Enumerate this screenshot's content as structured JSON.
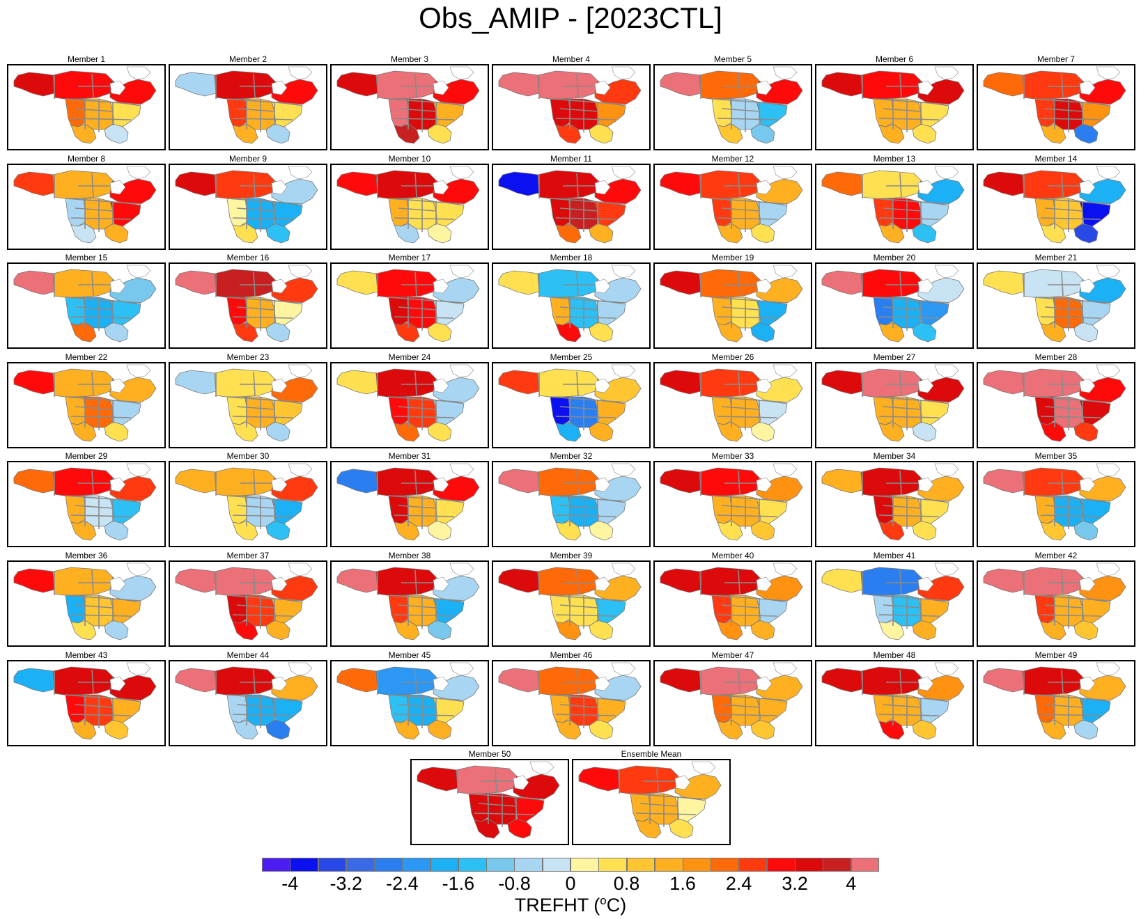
{
  "title": "Obs_AMIP - [2023CTL]",
  "map_region": "North America",
  "variable": "TREFHT",
  "units_open": "TREFHT (",
  "units_sup": "o",
  "units_close": "C)",
  "colorbar": {
    "colors": [
      "#4b1df2",
      "#0b10f0",
      "#2848e8",
      "#3a6ae6",
      "#2a7ef0",
      "#2c98f4",
      "#1cb0f5",
      "#2cc0f5",
      "#78c8ee",
      "#a8d6f2",
      "#c8e4f4",
      "#fff4a0",
      "#ffe050",
      "#ffc632",
      "#ffb020",
      "#ff9210",
      "#ff6a08",
      "#ff3a10",
      "#ff0a0a",
      "#dc0a0a",
      "#c82020",
      "#eb7078"
    ],
    "tick_labels": [
      "-4",
      "-3.2",
      "-2.4",
      "-1.6",
      "-0.8",
      "0",
      "0.8",
      "1.6",
      "2.4",
      "3.2",
      "4"
    ]
  },
  "panels": [
    {
      "label": "Member 1",
      "anom": {
        "NW": 3.5,
        "CAN": 3.0,
        "CE": 2.8,
        "WUS": 2.0,
        "CUS": 1.6,
        "EUS": 0.4,
        "SW": 1.2,
        "SE": -0.4
      }
    },
    {
      "label": "Member 2",
      "anom": {
        "NW": -0.6,
        "CAN": 3.6,
        "CE": 2.8,
        "WUS": 2.4,
        "CUS": 1.6,
        "EUS": 0.8,
        "SW": 1.2,
        "SE": -0.6
      }
    },
    {
      "label": "Member 3",
      "anom": {
        "NW": 3.4,
        "CAN": 4.2,
        "CE": 3.0,
        "WUS": 4.0,
        "CUS": 3.6,
        "EUS": 1.6,
        "SW": 3.8,
        "SE": 0.4
      }
    },
    {
      "label": "Member 4",
      "anom": {
        "NW": 4.2,
        "CAN": 4.2,
        "CE": 2.6,
        "WUS": 3.2,
        "CUS": 3.6,
        "EUS": 1.8,
        "SW": 2.4,
        "SE": 0.6
      }
    },
    {
      "label": "Member 5",
      "anom": {
        "NW": 4.2,
        "CAN": 2.0,
        "CE": 3.0,
        "WUS": 0.8,
        "CUS": -0.8,
        "EUS": -1.2,
        "SW": 1.0,
        "SE": -1.0
      }
    },
    {
      "label": "Member 6",
      "anom": {
        "NW": 3.6,
        "CAN": 3.0,
        "CE": 3.4,
        "WUS": 1.6,
        "CUS": 1.2,
        "EUS": 0.6,
        "SW": 1.6,
        "SE": 0.4
      }
    },
    {
      "label": "Member 7",
      "anom": {
        "NW": 2.2,
        "CAN": 2.6,
        "CE": 2.8,
        "WUS": 2.6,
        "CUS": 3.6,
        "EUS": 1.8,
        "SW": 1.6,
        "SE": -2.8
      }
    },
    {
      "label": "Member 8",
      "anom": {
        "NW": 2.4,
        "CAN": 1.2,
        "CE": 2.8,
        "WUS": -0.8,
        "CUS": 1.6,
        "EUS": 3.0,
        "SW": -0.4,
        "SE": 1.2
      }
    },
    {
      "label": "Member 9",
      "anom": {
        "NW": 3.2,
        "CAN": 2.6,
        "CE": -0.8,
        "WUS": 0.0,
        "CUS": -2.0,
        "EUS": -1.6,
        "SW": 0.4,
        "SE": -1.2
      }
    },
    {
      "label": "Member 10",
      "anom": {
        "NW": 3.0,
        "CAN": 3.2,
        "CE": 3.0,
        "WUS": 1.2,
        "CUS": 0.8,
        "EUS": 0.4,
        "SW": -0.6,
        "SE": 0.0
      }
    },
    {
      "label": "Member 11",
      "anom": {
        "NW": -3.8,
        "CAN": 3.2,
        "CE": 2.8,
        "WUS": 3.4,
        "CUS": 3.8,
        "EUS": 2.4,
        "SW": 2.0,
        "SE": 1.6
      }
    },
    {
      "label": "Member 12",
      "anom": {
        "NW": 3.0,
        "CAN": 2.4,
        "CE": 1.2,
        "WUS": 2.4,
        "CUS": 1.6,
        "EUS": -0.6,
        "SW": 1.4,
        "SE": 0.8
      }
    },
    {
      "label": "Member 13",
      "anom": {
        "NW": 2.2,
        "CAN": 0.4,
        "CE": -1.6,
        "WUS": 2.4,
        "CUS": 2.8,
        "EUS": -0.8,
        "SW": 1.6,
        "SE": -1.2
      }
    },
    {
      "label": "Member 14",
      "anom": {
        "NW": 3.4,
        "CAN": 2.4,
        "CE": -1.6,
        "WUS": 1.2,
        "CUS": 1.0,
        "EUS": -3.6,
        "SW": 0.8,
        "SE": -3.2
      }
    },
    {
      "label": "Member 15",
      "anom": {
        "NW": 4.2,
        "CAN": 1.6,
        "CE": -1.0,
        "WUS": -1.2,
        "CUS": -1.6,
        "EUS": -1.2,
        "SW": 2.0,
        "SE": -0.8
      }
    },
    {
      "label": "Member 16",
      "anom": {
        "NW": 4.0,
        "CAN": 3.8,
        "CE": 2.4,
        "WUS": 2.8,
        "CUS": 1.2,
        "EUS": 0.0,
        "SW": 2.6,
        "SE": -0.8
      }
    },
    {
      "label": "Member 17",
      "anom": {
        "NW": 0.8,
        "CAN": 3.0,
        "CE": -0.8,
        "WUS": 3.4,
        "CUS": 2.8,
        "EUS": -0.4,
        "SW": 2.4,
        "SE": 0.6
      }
    },
    {
      "label": "Member 18",
      "anom": {
        "NW": 0.6,
        "CAN": -1.2,
        "CE": -0.6,
        "WUS": 1.2,
        "CUS": -1.2,
        "EUS": -0.8,
        "SW": 2.8,
        "SE": 0.8
      }
    },
    {
      "label": "Member 19",
      "anom": {
        "NW": 3.2,
        "CAN": 2.0,
        "CE": 1.6,
        "WUS": 1.6,
        "CUS": 0.8,
        "EUS": -2.0,
        "SW": 1.2,
        "SE": -1.6
      }
    },
    {
      "label": "Member 20",
      "anom": {
        "NW": 4.2,
        "CAN": 3.0,
        "CE": -0.4,
        "WUS": -2.8,
        "CUS": -2.0,
        "EUS": -2.4,
        "SW": 1.2,
        "SE": -1.2
      }
    },
    {
      "label": "Member 21",
      "anom": {
        "NW": 0.8,
        "CAN": -0.4,
        "CE": -1.6,
        "WUS": 0.8,
        "CUS": 2.2,
        "EUS": -0.6,
        "SW": 1.2,
        "SE": -0.4
      }
    },
    {
      "label": "Member 22",
      "anom": {
        "NW": 2.8,
        "CAN": 1.4,
        "CE": 1.2,
        "WUS": 1.6,
        "CUS": 2.0,
        "EUS": -0.8,
        "SW": 1.4,
        "SE": 0.8
      }
    },
    {
      "label": "Member 23",
      "anom": {
        "NW": -0.6,
        "CAN": 0.6,
        "CE": 2.2,
        "WUS": 0.4,
        "CUS": 1.6,
        "EUS": 1.0,
        "SW": 0.8,
        "SE": -0.6
      }
    },
    {
      "label": "Member 24",
      "anom": {
        "NW": 0.6,
        "CAN": 3.2,
        "CE": -0.8,
        "WUS": 3.0,
        "CUS": 2.4,
        "EUS": -0.6,
        "SW": 2.0,
        "SE": 0.8
      }
    },
    {
      "label": "Member 25",
      "anom": {
        "NW": 2.6,
        "CAN": 0.8,
        "CE": 1.0,
        "WUS": -3.6,
        "CUS": -2.8,
        "EUS": 1.2,
        "SW": -1.6,
        "SE": 1.2
      }
    },
    {
      "label": "Member 26",
      "anom": {
        "NW": 3.4,
        "CAN": 2.6,
        "CE": 0.8,
        "WUS": 1.6,
        "CUS": 1.2,
        "EUS": -0.4,
        "SW": 1.4,
        "SE": 0.2
      }
    },
    {
      "label": "Member 27",
      "anom": {
        "NW": 3.4,
        "CAN": 4.2,
        "CE": 3.4,
        "WUS": 1.6,
        "CUS": 1.2,
        "EUS": 0.6,
        "SW": 1.2,
        "SE": -0.4
      }
    },
    {
      "label": "Member 28",
      "anom": {
        "NW": 4.0,
        "CAN": 4.2,
        "CE": 3.0,
        "WUS": 3.6,
        "CUS": 4.2,
        "EUS": 3.2,
        "SW": 3.0,
        "SE": 2.6
      }
    },
    {
      "label": "Member 29",
      "anom": {
        "NW": 2.0,
        "CAN": 2.8,
        "CE": 2.4,
        "WUS": 1.6,
        "CUS": -0.4,
        "EUS": -1.2,
        "SW": 1.6,
        "SE": -0.8
      }
    },
    {
      "label": "Member 30",
      "anom": {
        "NW": 1.6,
        "CAN": 1.6,
        "CE": 2.4,
        "WUS": 0.6,
        "CUS": -0.8,
        "EUS": -1.6,
        "SW": 0.6,
        "SE": -1.2
      }
    },
    {
      "label": "Member 31",
      "anom": {
        "NW": -2.6,
        "CAN": 3.6,
        "CE": 2.8,
        "WUS": 3.4,
        "CUS": 1.2,
        "EUS": 0.4,
        "SW": 1.6,
        "SE": 0.2
      }
    },
    {
      "label": "Member 32",
      "anom": {
        "NW": 4.2,
        "CAN": 2.0,
        "CE": -0.6,
        "WUS": -1.2,
        "CUS": -2.0,
        "EUS": -0.8,
        "SW": 0.4,
        "SE": 0.2
      }
    },
    {
      "label": "Member 33",
      "anom": {
        "NW": 3.2,
        "CAN": 2.8,
        "CE": 1.8,
        "WUS": 1.4,
        "CUS": 1.4,
        "EUS": 0.6,
        "SW": 0.8,
        "SE": 1.0
      }
    },
    {
      "label": "Member 34",
      "anom": {
        "NW": 1.4,
        "CAN": 3.2,
        "CE": 1.6,
        "WUS": 3.4,
        "CUS": 1.6,
        "EUS": 0.4,
        "SW": 2.6,
        "SE": 0.8
      }
    },
    {
      "label": "Member 35",
      "anom": {
        "NW": 4.2,
        "CAN": 2.4,
        "CE": 1.6,
        "WUS": 1.2,
        "CUS": -1.8,
        "EUS": -2.0,
        "SW": 1.0,
        "SE": -1.0
      }
    },
    {
      "label": "Member 36",
      "anom": {
        "NW": 2.8,
        "CAN": 1.6,
        "CE": -0.6,
        "WUS": -1.6,
        "CUS": 1.0,
        "EUS": 1.2,
        "SW": 0.6,
        "SE": -0.8
      }
    },
    {
      "label": "Member 37",
      "anom": {
        "NW": 4.2,
        "CAN": 4.2,
        "CE": 2.6,
        "WUS": 3.4,
        "CUS": 2.4,
        "EUS": 1.2,
        "SW": 2.8,
        "SE": 1.2
      }
    },
    {
      "label": "Member 38",
      "anom": {
        "NW": 4.2,
        "CAN": 3.2,
        "CE": -0.8,
        "WUS": 2.4,
        "CUS": 1.6,
        "EUS": -1.6,
        "SW": 1.6,
        "SE": -1.0
      }
    },
    {
      "label": "Member 39",
      "anom": {
        "NW": 3.4,
        "CAN": 2.2,
        "CE": 1.2,
        "WUS": 0.4,
        "CUS": 0.4,
        "EUS": -1.2,
        "SW": 1.8,
        "SE": 0.6
      }
    },
    {
      "label": "Member 40",
      "anom": {
        "NW": 3.4,
        "CAN": 3.6,
        "CE": 1.8,
        "WUS": 2.6,
        "CUS": 1.6,
        "EUS": -0.6,
        "SW": 1.8,
        "SE": 1.2
      }
    },
    {
      "label": "Member 41",
      "anom": {
        "NW": 0.6,
        "CAN": -2.8,
        "CE": 2.4,
        "WUS": -0.8,
        "CUS": -1.2,
        "EUS": 1.2,
        "SW": 0.2,
        "SE": 1.6
      }
    },
    {
      "label": "Member 42",
      "anom": {
        "NW": 4.0,
        "CAN": 4.0,
        "CE": 1.8,
        "WUS": 2.4,
        "CUS": 1.6,
        "EUS": 1.2,
        "SW": 1.2,
        "SE": 1.0
      }
    },
    {
      "label": "Member 43",
      "anom": {
        "NW": -1.6,
        "CAN": 3.2,
        "CE": 3.6,
        "WUS": 2.8,
        "CUS": 2.4,
        "EUS": 1.2,
        "SW": 1.6,
        "SE": 1.0
      }
    },
    {
      "label": "Member 44",
      "anom": {
        "NW": 4.2,
        "CAN": 3.6,
        "CE": 1.4,
        "WUS": -0.6,
        "CUS": -1.6,
        "EUS": -1.6,
        "SW": -0.6,
        "SE": -2.8
      }
    },
    {
      "label": "Member 45",
      "anom": {
        "NW": 2.0,
        "CAN": -2.4,
        "CE": -0.6,
        "WUS": -1.2,
        "CUS": -1.6,
        "EUS": 0.4,
        "SW": 1.6,
        "SE": 1.4
      }
    },
    {
      "label": "Member 46",
      "anom": {
        "NW": 4.2,
        "CAN": 2.2,
        "CE": -0.6,
        "WUS": 1.6,
        "CUS": 2.4,
        "EUS": 1.2,
        "SW": 1.6,
        "SE": 0.8
      }
    },
    {
      "label": "Member 47",
      "anom": {
        "NW": 3.6,
        "CAN": 4.0,
        "CE": 1.6,
        "WUS": 2.0,
        "CUS": 1.6,
        "EUS": 1.6,
        "SW": 1.6,
        "SE": 1.0
      }
    },
    {
      "label": "Member 48",
      "anom": {
        "NW": 3.2,
        "CAN": 3.6,
        "CE": 1.8,
        "WUS": 1.2,
        "CUS": 1.4,
        "EUS": -0.6,
        "SW": 3.0,
        "SE": 1.0
      }
    },
    {
      "label": "Member 49",
      "anom": {
        "NW": 4.0,
        "CAN": 3.2,
        "CE": 1.6,
        "WUS": 2.2,
        "CUS": 1.6,
        "EUS": -1.6,
        "SW": 1.4,
        "SE": -0.8
      }
    },
    {
      "label": "Member 50",
      "anom": {
        "NW": 3.6,
        "CAN": 4.2,
        "CE": 3.4,
        "WUS": 3.6,
        "CUS": 3.4,
        "EUS": 3.0,
        "SW": 3.2,
        "SE": 2.8
      }
    },
    {
      "label": "Ensemble Mean",
      "anom": {
        "NW": 3.0,
        "CAN": 2.6,
        "CE": 1.4,
        "WUS": 1.6,
        "CUS": 1.2,
        "EUS": 0.2,
        "SW": 1.6,
        "SE": 0.6
      }
    }
  ]
}
